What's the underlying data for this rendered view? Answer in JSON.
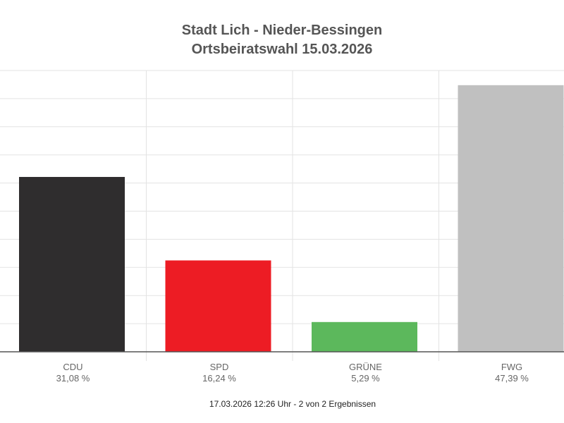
{
  "chart_data": {
    "type": "bar",
    "title": "Stadt Lich - Nieder-Bessingen",
    "subtitle": "Ortsbeiratswahl 15.03.2026",
    "categories": [
      "CDU",
      "SPD",
      "GRÜNE",
      "FWG"
    ],
    "values": [
      31.08,
      16.24,
      5.29,
      47.39
    ],
    "value_labels": [
      "31,08 %",
      "16,24 %",
      "5,29 %",
      "47,39 %"
    ],
    "colors": [
      "#2f2d2e",
      "#ed1c24",
      "#5cb85c",
      "#c0c0c0"
    ],
    "ylim": [
      0,
      50
    ],
    "y_grid_step": 5,
    "grid": true,
    "xlabel": "",
    "ylabel": ""
  },
  "footer": "17.03.2026 12:26 Uhr - 2 von 2 Ergebnissen"
}
